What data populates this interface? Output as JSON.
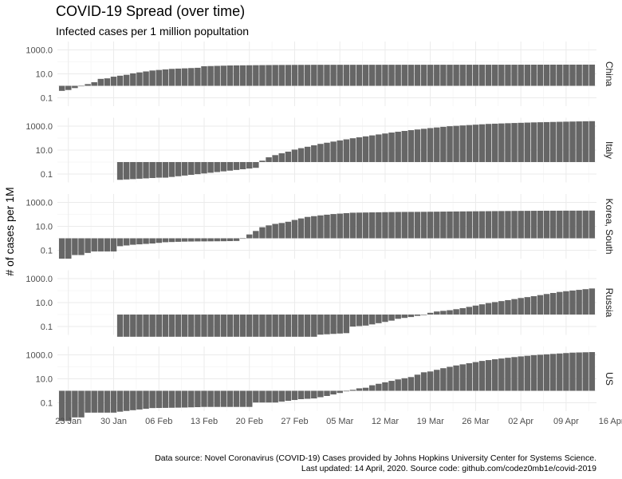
{
  "title": "COVID-19 Spread (over time)",
  "subtitle": "Infected cases per 1 million popultation",
  "caption": {
    "line1": "Data source: Novel Coronavirus (COVID-19) Cases provided by Johns Hopkins University Center for Systems Science.",
    "line2": "Last updated: 14 April, 2020. Source code: github.com/codez0mb1e/covid-2019"
  },
  "colors": {
    "bar": "#666666",
    "grid_major": "#ebebeb",
    "grid_minor": "#f5f5f5"
  },
  "chart_data": {
    "type": "bar",
    "ylabel": "# of cases per 1M",
    "y_scale": "log10",
    "ylim": [
      0.02,
      5000
    ],
    "y_ticks": [
      0.1,
      10,
      1000
    ],
    "y_tick_labels": [
      "0.1",
      "10.0",
      "1000.0"
    ],
    "bar_baseline": 1,
    "x_start": "2020-01-22",
    "x_end": "2020-04-13",
    "x_ticks": [
      "2020-01-23",
      "2020-01-30",
      "2020-02-06",
      "2020-02-13",
      "2020-02-20",
      "2020-02-27",
      "2020-03-05",
      "2020-03-12",
      "2020-03-19",
      "2020-03-26",
      "2020-04-02",
      "2020-04-09",
      "2020-04-16"
    ],
    "x_tick_labels": [
      "23 Jan",
      "30 Jan",
      "06 Feb",
      "13 Feb",
      "20 Feb",
      "27 Feb",
      "05 Mar",
      "12 Mar",
      "19 Mar",
      "26 Mar",
      "02 Apr",
      "09 Apr",
      "16 Apr"
    ],
    "grid": true,
    "facets": [
      {
        "name": "China",
        "points": [
          [
            "2020-01-22",
            0.38
          ],
          [
            "2020-01-23",
            0.45
          ],
          [
            "2020-01-24",
            0.65
          ],
          [
            "2020-01-25",
            1.0
          ],
          [
            "2020-01-26",
            1.4
          ],
          [
            "2020-01-27",
            2.0
          ],
          [
            "2020-01-28",
            3.8
          ],
          [
            "2020-01-29",
            4.2
          ],
          [
            "2020-01-30",
            5.8
          ],
          [
            "2020-01-31",
            7.0
          ],
          [
            "2020-02-01",
            8.3
          ],
          [
            "2020-02-02",
            11
          ],
          [
            "2020-02-05",
            19
          ],
          [
            "2020-02-08",
            26
          ],
          [
            "2020-02-12",
            32
          ],
          [
            "2020-02-13",
            43
          ],
          [
            "2020-02-17",
            50
          ],
          [
            "2020-02-24",
            55
          ],
          [
            "2020-03-01",
            57
          ],
          [
            "2020-03-30",
            58
          ],
          [
            "2020-03-31",
            58
          ],
          [
            "2020-04-13",
            59
          ]
        ]
      },
      {
        "name": "Italy",
        "points": [
          [
            "2020-01-31",
            0.033
          ],
          [
            "2020-02-06",
            0.05
          ],
          [
            "2020-02-07",
            0.05
          ],
          [
            "2020-02-21",
            0.33
          ],
          [
            "2020-02-22",
            1.3
          ],
          [
            "2020-02-23",
            2.5
          ],
          [
            "2020-02-24",
            3.8
          ],
          [
            "2020-02-25",
            5.4
          ],
          [
            "2020-02-26",
            7.4
          ],
          [
            "2020-02-27",
            11
          ],
          [
            "2020-02-29",
            19
          ],
          [
            "2020-03-02",
            33
          ],
          [
            "2020-03-05",
            64
          ],
          [
            "2020-03-07",
            97
          ],
          [
            "2020-03-10",
            168
          ],
          [
            "2020-03-13",
            291
          ],
          [
            "2020-03-16",
            461
          ],
          [
            "2020-03-19",
            684
          ],
          [
            "2020-03-22",
            985
          ],
          [
            "2020-03-25",
            1226
          ],
          [
            "2020-03-28",
            1529
          ],
          [
            "2020-03-31",
            1750
          ],
          [
            "2020-04-04",
            2050
          ],
          [
            "2020-04-08",
            2300
          ],
          [
            "2020-04-13",
            2600
          ]
        ]
      },
      {
        "name": "Korea, South",
        "points": [
          [
            "2020-01-22",
            0.02
          ],
          [
            "2020-01-23",
            0.02
          ],
          [
            "2020-01-24",
            0.04
          ],
          [
            "2020-01-25",
            0.04
          ],
          [
            "2020-01-26",
            0.06
          ],
          [
            "2020-01-27",
            0.08
          ],
          [
            "2020-01-30",
            0.08
          ],
          [
            "2020-01-31",
            0.22
          ],
          [
            "2020-02-02",
            0.29
          ],
          [
            "2020-02-05",
            0.37
          ],
          [
            "2020-02-07",
            0.47
          ],
          [
            "2020-02-10",
            0.53
          ],
          [
            "2020-02-12",
            0.55
          ],
          [
            "2020-02-16",
            0.57
          ],
          [
            "2020-02-18",
            0.6
          ],
          [
            "2020-02-19",
            0.99
          ],
          [
            "2020-02-20",
            2.1
          ],
          [
            "2020-02-21",
            4.1
          ],
          [
            "2020-02-22",
            8.4
          ],
          [
            "2020-02-23",
            12
          ],
          [
            "2020-02-24",
            16
          ],
          [
            "2020-02-25",
            19
          ],
          [
            "2020-02-26",
            24
          ],
          [
            "2020-02-27",
            34
          ],
          [
            "2020-02-29",
            61
          ],
          [
            "2020-03-02",
            82
          ],
          [
            "2020-03-04",
            106
          ],
          [
            "2020-03-07",
            137
          ],
          [
            "2020-03-10",
            146
          ],
          [
            "2020-03-14",
            158
          ],
          [
            "2020-03-18",
            163
          ],
          [
            "2020-03-22",
            172
          ],
          [
            "2020-03-26",
            180
          ],
          [
            "2020-04-01",
            193
          ],
          [
            "2020-04-06",
            201
          ],
          [
            "2020-04-13",
            206
          ]
        ]
      },
      {
        "name": "Russia",
        "points": [
          [
            "2020-01-31",
            0.014
          ],
          [
            "2020-02-03",
            0.014
          ],
          [
            "2020-03-01",
            0.014
          ],
          [
            "2020-03-02",
            0.021
          ],
          [
            "2020-03-06",
            0.028
          ],
          [
            "2020-03-07",
            0.1
          ],
          [
            "2020-03-09",
            0.12
          ],
          [
            "2020-03-11",
            0.19
          ],
          [
            "2020-03-13",
            0.31
          ],
          [
            "2020-03-14",
            0.44
          ],
          [
            "2020-03-16",
            0.62
          ],
          [
            "2020-03-17",
            0.78
          ],
          [
            "2020-03-18",
            1.0
          ],
          [
            "2020-03-19",
            1.4
          ],
          [
            "2020-03-20",
            1.8
          ],
          [
            "2020-03-22",
            2.3
          ],
          [
            "2020-03-24",
            3.4
          ],
          [
            "2020-03-26",
            5.6
          ],
          [
            "2020-03-28",
            9.1
          ],
          [
            "2020-03-31",
            16
          ],
          [
            "2020-04-02",
            24
          ],
          [
            "2020-04-04",
            34
          ],
          [
            "2020-04-06",
            52
          ],
          [
            "2020-04-08",
            77
          ],
          [
            "2020-04-10",
            101
          ],
          [
            "2020-04-13",
            150
          ]
        ]
      },
      {
        "name": "US",
        "points": [
          [
            "2020-01-22",
            0.003
          ],
          [
            "2020-01-23",
            0.003
          ],
          [
            "2020-01-24",
            0.006
          ],
          [
            "2020-01-25",
            0.006
          ],
          [
            "2020-01-26",
            0.015
          ],
          [
            "2020-01-30",
            0.015
          ],
          [
            "2020-01-31",
            0.018
          ],
          [
            "2020-02-02",
            0.024
          ],
          [
            "2020-02-05",
            0.036
          ],
          [
            "2020-02-10",
            0.04
          ],
          [
            "2020-02-13",
            0.045
          ],
          [
            "2020-02-20",
            0.045
          ],
          [
            "2020-02-21",
            0.106
          ],
          [
            "2020-02-24",
            0.106
          ],
          [
            "2020-02-28",
            0.2
          ],
          [
            "2020-03-01",
            0.23
          ],
          [
            "2020-03-03",
            0.37
          ],
          [
            "2020-03-05",
            0.66
          ],
          [
            "2020-03-06",
            0.9
          ],
          [
            "2020-03-08",
            1.6
          ],
          [
            "2020-03-09",
            1.8
          ],
          [
            "2020-03-10",
            2.9
          ],
          [
            "2020-03-12",
            5.1
          ],
          [
            "2020-03-14",
            8.9
          ],
          [
            "2020-03-16",
            14
          ],
          [
            "2020-03-18",
            35
          ],
          [
            "2020-03-19",
            41
          ],
          [
            "2020-03-21",
            77
          ],
          [
            "2020-03-23",
            130
          ],
          [
            "2020-03-25",
            200
          ],
          [
            "2020-03-27",
            310
          ],
          [
            "2020-03-29",
            430
          ],
          [
            "2020-03-31",
            570
          ],
          [
            "2020-04-02",
            740
          ],
          [
            "2020-04-04",
            940
          ],
          [
            "2020-04-06",
            1110
          ],
          [
            "2020-04-08",
            1300
          ],
          [
            "2020-04-10",
            1530
          ],
          [
            "2020-04-13",
            1700
          ]
        ]
      }
    ]
  }
}
